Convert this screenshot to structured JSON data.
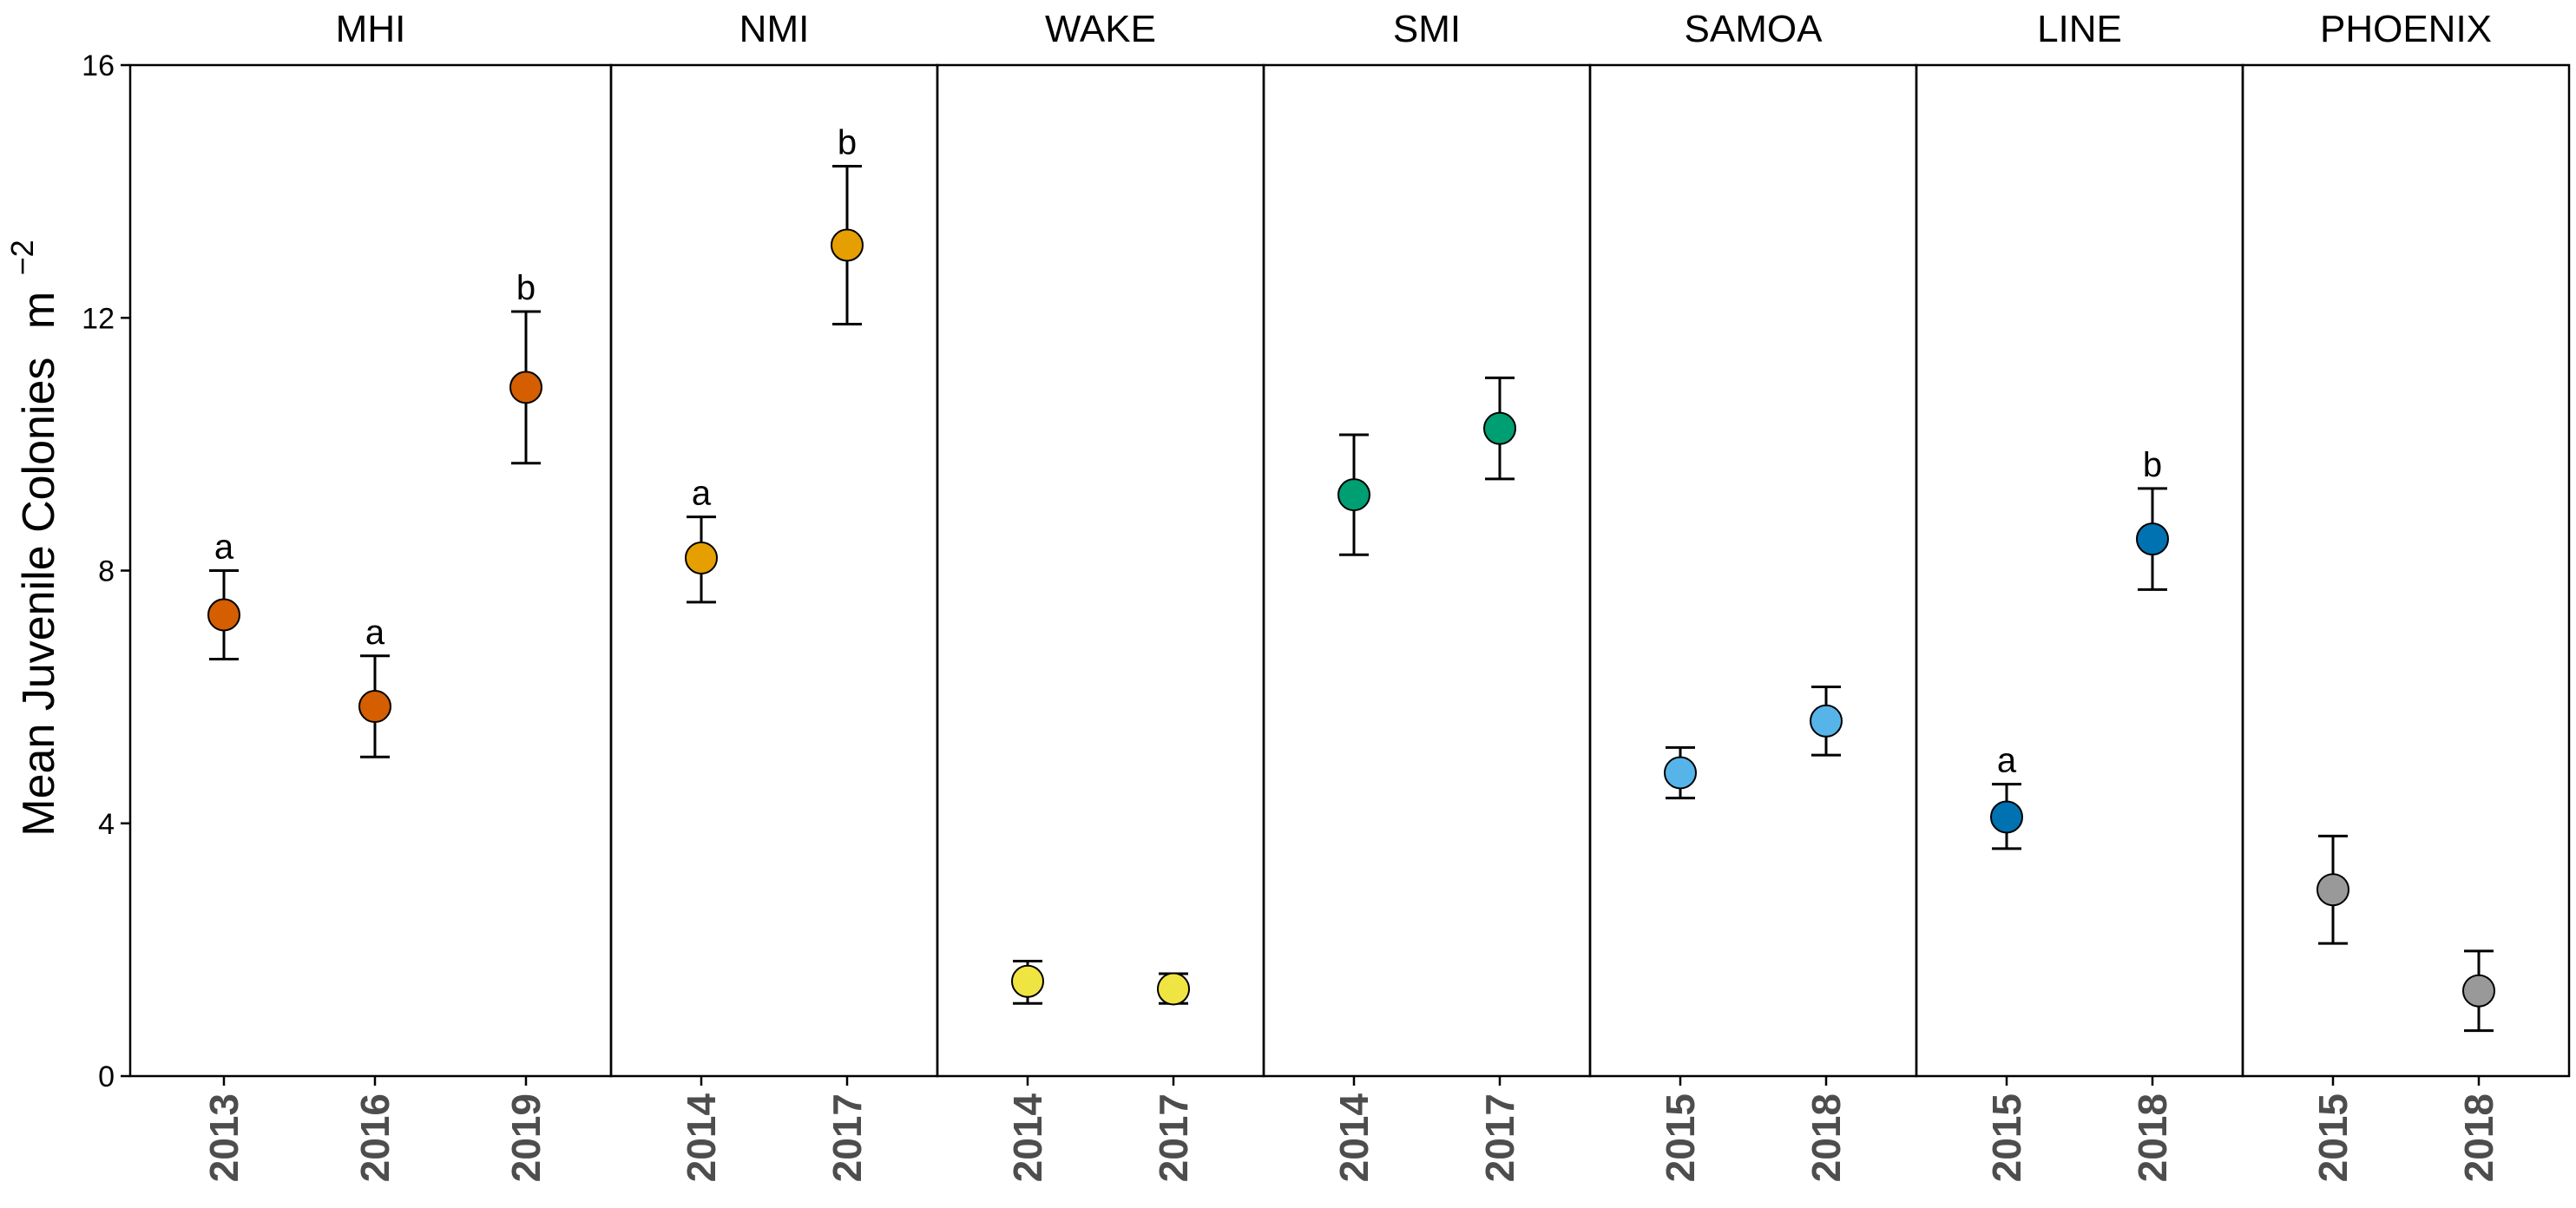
{
  "chart_data": {
    "type": "scatter",
    "title": "",
    "xlabel": "",
    "ylabel": "Mean Juvenile Colonies",
    "ylabel_unit": "m",
    "ylabel_exponent": "−2",
    "ylim": [
      0,
      16
    ],
    "yticks": [
      0,
      4,
      8,
      12,
      16
    ],
    "grid": false,
    "panels": [
      {
        "name": "MHI",
        "color": "#D55E00",
        "points": [
          {
            "year": "2013",
            "mean": 7.3,
            "lower": 6.6,
            "upper": 8.0,
            "letter": "a"
          },
          {
            "year": "2016",
            "mean": 5.85,
            "lower": 5.05,
            "upper": 6.65,
            "letter": "a"
          },
          {
            "year": "2019",
            "mean": 10.9,
            "lower": 9.7,
            "upper": 12.1,
            "letter": "b"
          }
        ]
      },
      {
        "name": "NMI",
        "color": "#E69F00",
        "points": [
          {
            "year": "2014",
            "mean": 8.2,
            "lower": 7.5,
            "upper": 8.85,
            "letter": "a"
          },
          {
            "year": "2017",
            "mean": 13.15,
            "lower": 11.9,
            "upper": 14.4,
            "letter": "b"
          }
        ]
      },
      {
        "name": "WAKE",
        "color": "#F0E442",
        "points": [
          {
            "year": "2014",
            "mean": 1.5,
            "lower": 1.15,
            "upper": 1.82,
            "letter": ""
          },
          {
            "year": "2017",
            "mean": 1.38,
            "lower": 1.15,
            "upper": 1.62,
            "letter": ""
          }
        ]
      },
      {
        "name": "SMI",
        "color": "#009E73",
        "points": [
          {
            "year": "2014",
            "mean": 9.2,
            "lower": 8.25,
            "upper": 10.15,
            "letter": ""
          },
          {
            "year": "2017",
            "mean": 10.25,
            "lower": 9.45,
            "upper": 11.05,
            "letter": ""
          }
        ]
      },
      {
        "name": "SAMOA",
        "color": "#56B4E9",
        "points": [
          {
            "year": "2015",
            "mean": 4.8,
            "lower": 4.4,
            "upper": 5.2,
            "letter": ""
          },
          {
            "year": "2018",
            "mean": 5.62,
            "lower": 5.08,
            "upper": 6.16,
            "letter": ""
          }
        ]
      },
      {
        "name": "LINE",
        "color": "#0072B2",
        "points": [
          {
            "year": "2015",
            "mean": 4.1,
            "lower": 3.6,
            "upper": 4.62,
            "letter": "a"
          },
          {
            "year": "2018",
            "mean": 8.5,
            "lower": 7.7,
            "upper": 9.3,
            "letter": "b"
          }
        ]
      },
      {
        "name": "PHOENIX",
        "color": "#999999",
        "points": [
          {
            "year": "2015",
            "mean": 2.95,
            "lower": 2.1,
            "upper": 3.8,
            "letter": ""
          },
          {
            "year": "2018",
            "mean": 1.35,
            "lower": 0.72,
            "upper": 1.98,
            "letter": ""
          }
        ]
      }
    ]
  }
}
